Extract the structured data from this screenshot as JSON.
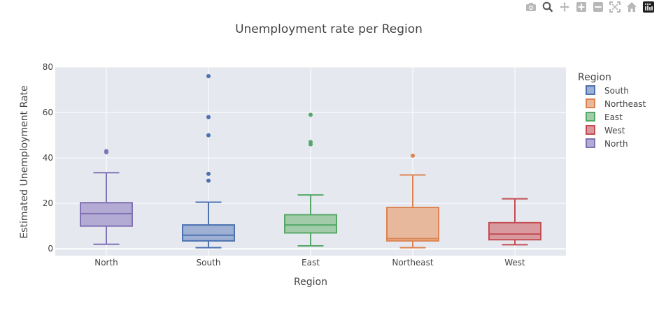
{
  "modebar": {
    "buttons": [
      "camera-icon",
      "zoom-icon",
      "pan-icon",
      "zoom-in-icon",
      "zoom-out-icon",
      "autoscale-icon",
      "reset-axes-icon",
      "plotly-logo-icon"
    ]
  },
  "chart_data": {
    "type": "box",
    "title": "Unemployment rate per Region",
    "xlabel": "Region",
    "ylabel": "Estimated Unemployment Rate",
    "ylim": [
      -3,
      80
    ],
    "yticks": [
      0,
      20,
      40,
      60,
      80
    ],
    "grid": true,
    "categories": [
      "North",
      "South",
      "East",
      "Northeast",
      "West"
    ],
    "legend": {
      "title": "Region",
      "position": "right"
    },
    "colors": {
      "plot_bg": "#e5e8ef",
      "grid": "#ffffff",
      "text": "#444444"
    },
    "series": [
      {
        "name": "South",
        "category": "South",
        "color": "#4c72b0",
        "fill": "#9eb1d4",
        "min": 0.5,
        "q1": 3.5,
        "median": 6,
        "q3": 10.5,
        "max": 20.5,
        "outliers": [
          30,
          33,
          50,
          58,
          76
        ]
      },
      {
        "name": "Northeast",
        "category": "Northeast",
        "color": "#dd8452",
        "fill": "#e8b89c",
        "min": 0.5,
        "q1": 3.5,
        "median": 4.5,
        "q3": 18.2,
        "max": 32.5,
        "outliers": [
          41
        ]
      },
      {
        "name": "East",
        "category": "East",
        "color": "#55a868",
        "fill": "#a2cca9",
        "min": 1.3,
        "q1": 7,
        "median": 10.5,
        "q3": 15,
        "max": 23.7,
        "outliers": [
          46,
          47,
          59
        ]
      },
      {
        "name": "West",
        "category": "West",
        "color": "#c44e52",
        "fill": "#d99a9f",
        "min": 1.8,
        "q1": 4,
        "median": 6.5,
        "q3": 11.5,
        "max": 22,
        "outliers": []
      },
      {
        "name": "North",
        "category": "North",
        "color": "#8172b3",
        "fill": "#b4abd4",
        "min": 2,
        "q1": 10,
        "median": 15.5,
        "q3": 20.3,
        "max": 33.5,
        "outliers": [
          42.5,
          43
        ]
      }
    ]
  }
}
